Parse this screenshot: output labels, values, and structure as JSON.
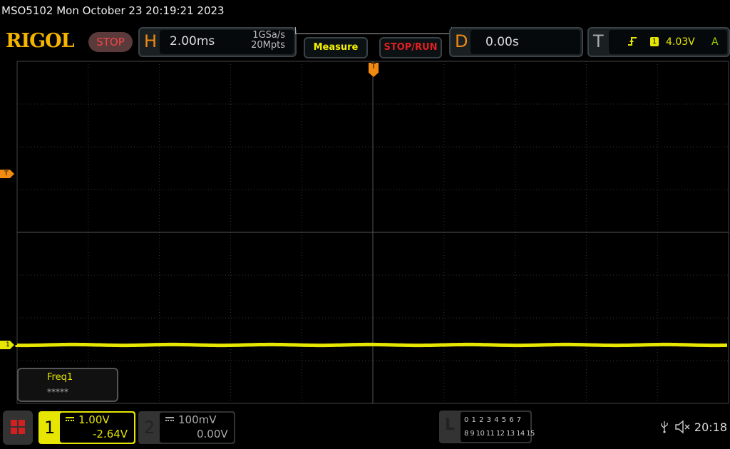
{
  "title": "MSO5102  Mon October 23 20:19:21 2023",
  "logo": "RIGOL",
  "status": "STOP",
  "horizontal": {
    "letter": "H",
    "timebase": "2.00ms",
    "sample_rate": "1GSa/s",
    "memory_depth": "20Mpts"
  },
  "buttons": {
    "measure": "Measure",
    "stop_run": "STOP/RUN"
  },
  "delay": {
    "letter": "D",
    "value": "0.00s"
  },
  "trigger": {
    "letter": "T",
    "edge_icon": "rising-edge-icon",
    "source": "1",
    "level": "4.03V",
    "mode": "A",
    "marker": "T"
  },
  "measurement": {
    "name": "Freq1",
    "value": "*****"
  },
  "channel1": {
    "number": "1",
    "scale": "1.00V",
    "offset": "-2.64V",
    "coupling_icon": "dc-coupling-icon",
    "color": "#e6e600",
    "marker": "1"
  },
  "channel2": {
    "number": "2",
    "scale": "100mV",
    "offset": "0.00V",
    "coupling_icon": "dc-coupling-icon"
  },
  "logic": {
    "letter": "L",
    "row1": "0 1 2 3  4 5 6 7",
    "row2": "8 9 10 11 12 13 14 15"
  },
  "status_bar": {
    "usb_icon": "usb-icon",
    "speaker_icon": "speaker-muted-icon",
    "time": "20:18"
  },
  "colors": {
    "accent_orange": "#f08a10",
    "ch1_yellow": "#e6e600",
    "logo": "#f4b400",
    "stop_red": "#f04848"
  }
}
